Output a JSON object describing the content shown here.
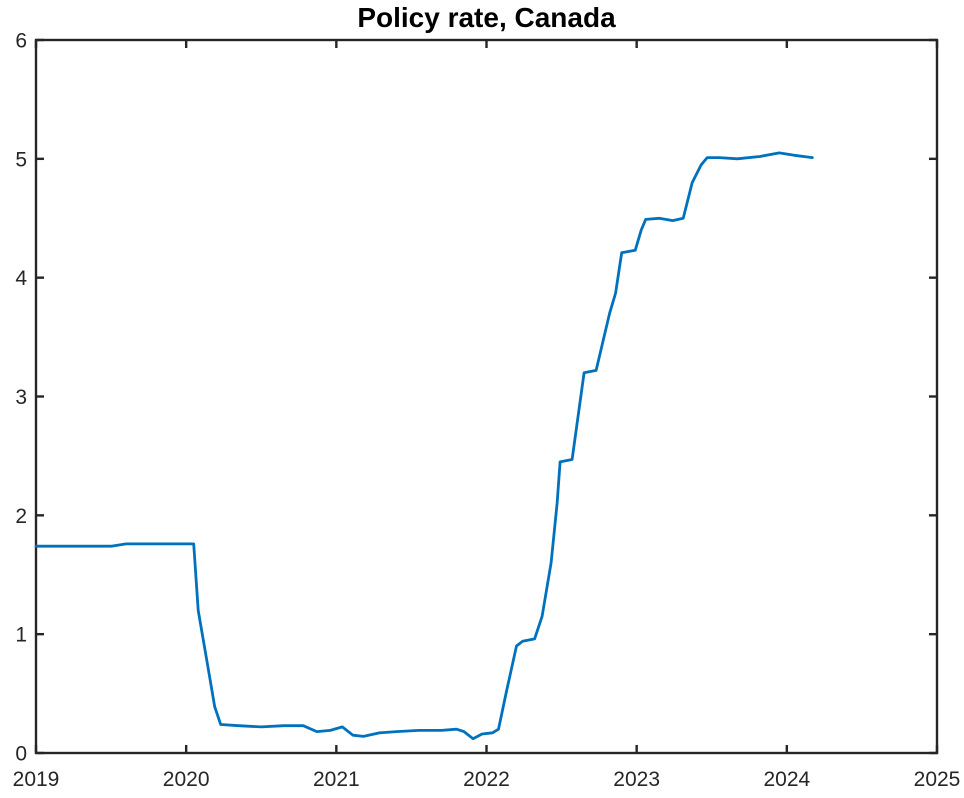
{
  "figure": {
    "background": "#ffffff",
    "axis_color": "#262626",
    "tick_label_color": "#262626",
    "title_color": "#000000",
    "accent_color": "#0072BD"
  },
  "chart_data": {
    "type": "line",
    "title": "Policy rate, Canada",
    "xlabel": "",
    "ylabel": "",
    "xlim": [
      2019,
      2025
    ],
    "ylim": [
      0,
      6
    ],
    "x_ticks": [
      2019,
      2020,
      2021,
      2022,
      2023,
      2024,
      2025
    ],
    "x_tick_labels": [
      "2019",
      "2020",
      "2021",
      "2022",
      "2023",
      "2024",
      "2025"
    ],
    "y_ticks": [
      0,
      1,
      2,
      3,
      4,
      5,
      6
    ],
    "y_tick_labels": [
      "0",
      "1",
      "2",
      "3",
      "4",
      "5",
      "6"
    ],
    "grid": false,
    "legend": false,
    "box": true,
    "tick_direction": "in",
    "series": [
      {
        "name": "Policy rate, Canada",
        "color": "#0072BD",
        "line_width": 2.8,
        "points": [
          [
            2019.0,
            1.74
          ],
          [
            2019.25,
            1.74
          ],
          [
            2019.5,
            1.74
          ],
          [
            2019.6,
            1.76
          ],
          [
            2019.8,
            1.76
          ],
          [
            2020.0,
            1.76
          ],
          [
            2020.05,
            1.76
          ],
          [
            2020.08,
            1.2
          ],
          [
            2020.14,
            0.76
          ],
          [
            2020.19,
            0.39
          ],
          [
            2020.23,
            0.24
          ],
          [
            2020.35,
            0.23
          ],
          [
            2020.5,
            0.22
          ],
          [
            2020.65,
            0.23
          ],
          [
            2020.78,
            0.23
          ],
          [
            2020.87,
            0.18
          ],
          [
            2020.96,
            0.19
          ],
          [
            2021.04,
            0.22
          ],
          [
            2021.11,
            0.15
          ],
          [
            2021.18,
            0.14
          ],
          [
            2021.29,
            0.17
          ],
          [
            2021.4,
            0.18
          ],
          [
            2021.55,
            0.19
          ],
          [
            2021.7,
            0.19
          ],
          [
            2021.8,
            0.2
          ],
          [
            2021.85,
            0.18
          ],
          [
            2021.91,
            0.12
          ],
          [
            2021.97,
            0.16
          ],
          [
            2022.04,
            0.17
          ],
          [
            2022.08,
            0.2
          ],
          [
            2022.13,
            0.5
          ],
          [
            2022.2,
            0.9
          ],
          [
            2022.24,
            0.94
          ],
          [
            2022.32,
            0.96
          ],
          [
            2022.37,
            1.15
          ],
          [
            2022.43,
            1.6
          ],
          [
            2022.47,
            2.1
          ],
          [
            2022.49,
            2.45
          ],
          [
            2022.57,
            2.47
          ],
          [
            2022.65,
            3.2
          ],
          [
            2022.73,
            3.22
          ],
          [
            2022.82,
            3.7
          ],
          [
            2022.86,
            3.87
          ],
          [
            2022.9,
            4.21
          ],
          [
            2022.99,
            4.23
          ],
          [
            2023.03,
            4.4
          ],
          [
            2023.06,
            4.49
          ],
          [
            2023.15,
            4.5
          ],
          [
            2023.24,
            4.48
          ],
          [
            2023.31,
            4.5
          ],
          [
            2023.37,
            4.8
          ],
          [
            2023.43,
            4.95
          ],
          [
            2023.47,
            5.01
          ],
          [
            2023.55,
            5.01
          ],
          [
            2023.67,
            5.0
          ],
          [
            2023.82,
            5.02
          ],
          [
            2023.95,
            5.05
          ],
          [
            2024.05,
            5.03
          ],
          [
            2024.17,
            5.01
          ]
        ]
      }
    ]
  }
}
